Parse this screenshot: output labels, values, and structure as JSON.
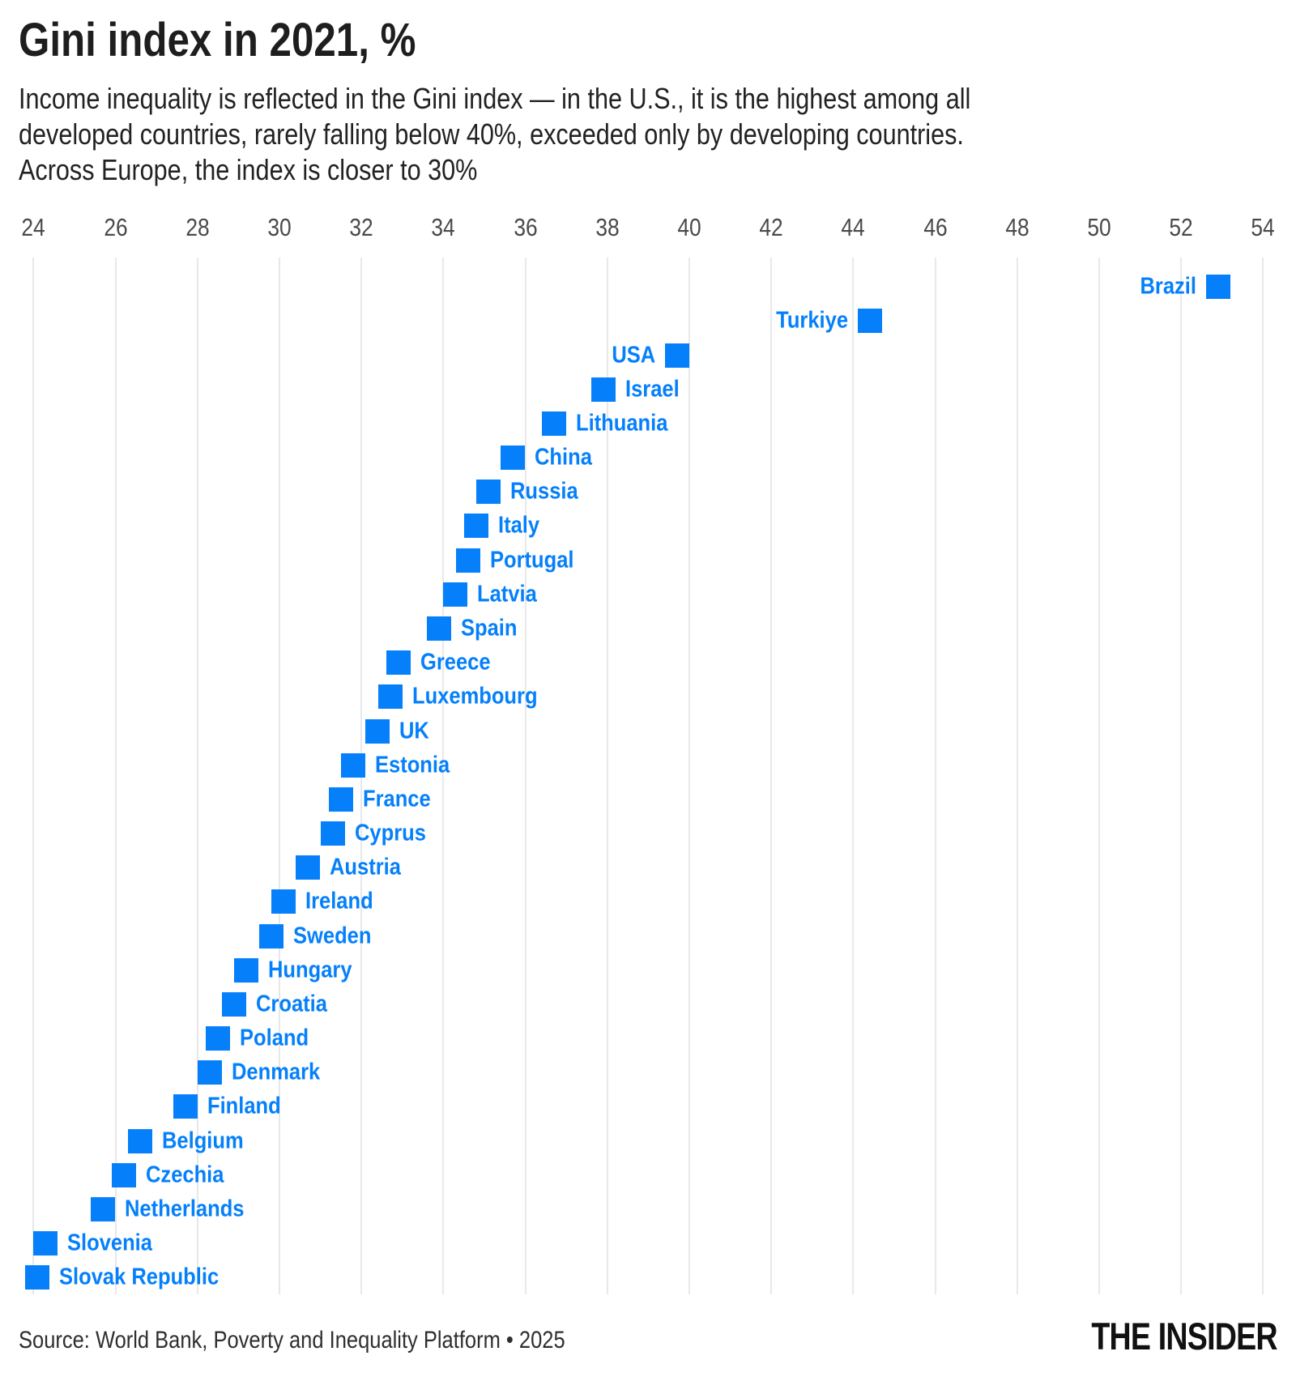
{
  "title": "Gini index in 2021, %",
  "subtitle": {
    "lines": [
      "Income inequality is reflected in the Gini index — in the U.S., it is the highest among all",
      "developed countries, rarely falling below 40%, exceeded only by developing countries.",
      "Across Europe, the index is closer to 30%"
    ]
  },
  "source": "Source: World Bank, Poverty and Inequality Platform • 2025",
  "brand": "THE INSIDER",
  "colors": {
    "marker": "#0580fa",
    "label": "#0580fa",
    "axis_text": "#4a4a4a",
    "gridline": "#e8e8e8",
    "title_text": "#1e1e1e",
    "source_text": "#2e2e2e",
    "brand_text": "#111111",
    "background": "#ffffff"
  },
  "chart_data": {
    "type": "scatter",
    "title": "Gini index in 2021, %",
    "xlabel": "",
    "ylabel": "",
    "xlim": [
      24,
      54
    ],
    "x_ticks": [
      24,
      26,
      28,
      30,
      32,
      34,
      36,
      38,
      40,
      42,
      44,
      46,
      48,
      50,
      52,
      54
    ],
    "grid": true,
    "marker_shape": "square",
    "legend": "none",
    "points": [
      {
        "country": "Brazil",
        "value": 52.9,
        "label_side": "left"
      },
      {
        "country": "Turkiye",
        "value": 44.4,
        "label_side": "left"
      },
      {
        "country": "USA",
        "value": 39.7,
        "label_side": "left"
      },
      {
        "country": "Israel",
        "value": 37.9,
        "label_side": "right"
      },
      {
        "country": "Lithuania",
        "value": 36.7,
        "label_side": "right"
      },
      {
        "country": "China",
        "value": 35.7,
        "label_side": "right"
      },
      {
        "country": "Russia",
        "value": 35.1,
        "label_side": "right"
      },
      {
        "country": "Italy",
        "value": 34.8,
        "label_side": "right"
      },
      {
        "country": "Portugal",
        "value": 34.6,
        "label_side": "right"
      },
      {
        "country": "Latvia",
        "value": 34.3,
        "label_side": "right"
      },
      {
        "country": "Spain",
        "value": 33.9,
        "label_side": "right"
      },
      {
        "country": "Greece",
        "value": 32.9,
        "label_side": "right"
      },
      {
        "country": "Luxembourg",
        "value": 32.7,
        "label_side": "right"
      },
      {
        "country": "UK",
        "value": 32.4,
        "label_side": "right"
      },
      {
        "country": "Estonia",
        "value": 31.8,
        "label_side": "right"
      },
      {
        "country": "France",
        "value": 31.5,
        "label_side": "right"
      },
      {
        "country": "Cyprus",
        "value": 31.3,
        "label_side": "right"
      },
      {
        "country": "Austria",
        "value": 30.7,
        "label_side": "right"
      },
      {
        "country": "Ireland",
        "value": 30.1,
        "label_side": "right"
      },
      {
        "country": "Sweden",
        "value": 29.8,
        "label_side": "right"
      },
      {
        "country": "Hungary",
        "value": 29.2,
        "label_side": "right"
      },
      {
        "country": "Croatia",
        "value": 28.9,
        "label_side": "right"
      },
      {
        "country": "Poland",
        "value": 28.5,
        "label_side": "right"
      },
      {
        "country": "Denmark",
        "value": 28.3,
        "label_side": "right"
      },
      {
        "country": "Finland",
        "value": 27.7,
        "label_side": "right"
      },
      {
        "country": "Belgium",
        "value": 26.6,
        "label_side": "right"
      },
      {
        "country": "Czechia",
        "value": 26.2,
        "label_side": "right"
      },
      {
        "country": "Netherlands",
        "value": 25.7,
        "label_side": "right"
      },
      {
        "country": "Slovenia",
        "value": 24.3,
        "label_side": "right"
      },
      {
        "country": "Slovak Republic",
        "value": 24.1,
        "label_side": "right"
      }
    ]
  }
}
